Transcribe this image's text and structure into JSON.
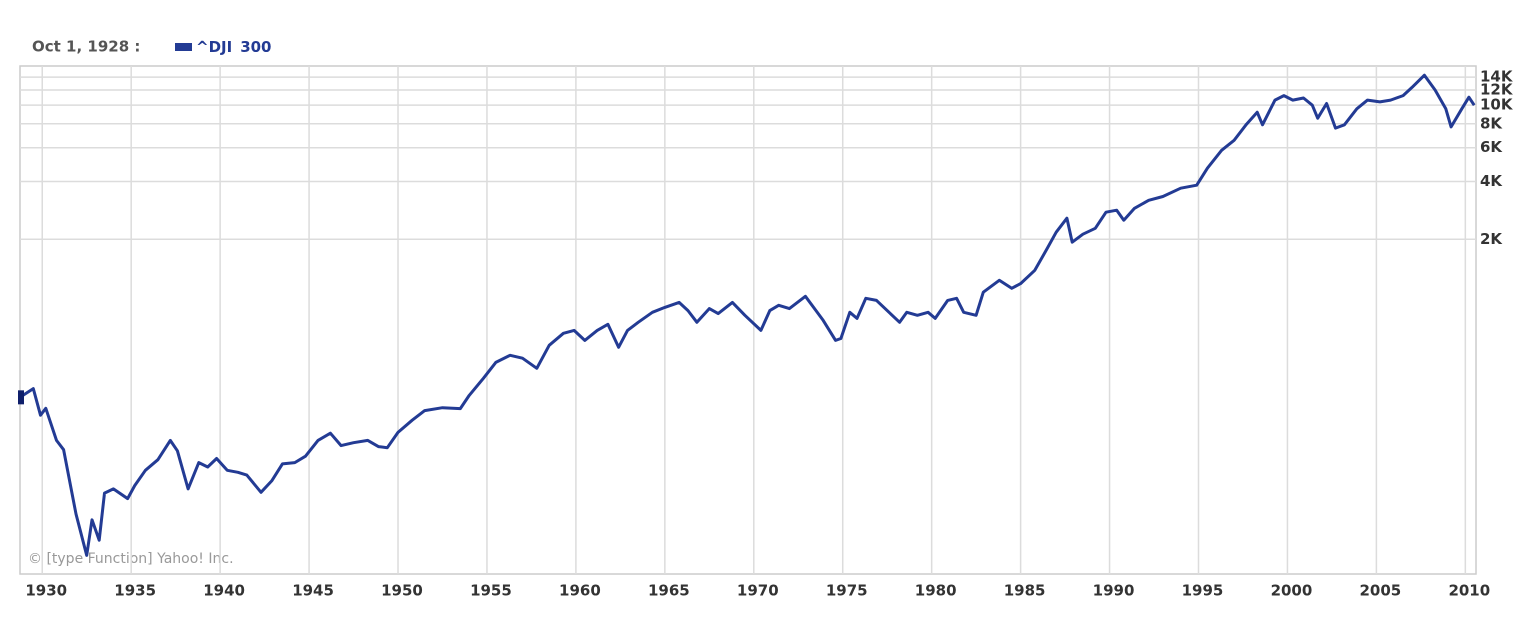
{
  "chart_data": {
    "type": "line",
    "legend": {
      "date": "Oct 1, 1928 :",
      "value": 300
    },
    "credit": "© [type Function] Yahoo! Inc.",
    "log_scale": true,
    "grid": true,
    "xlim": [
      1928.75,
      2010.6
    ],
    "xticks": [
      1930,
      1935,
      1940,
      1945,
      1950,
      1955,
      1960,
      1965,
      1970,
      1975,
      1980,
      1985,
      1990,
      1995,
      2000,
      2005,
      2010
    ],
    "ylim": [
      36,
      16000
    ],
    "yticks": [
      {
        "value": 2000,
        "label": "2K"
      },
      {
        "value": 4000,
        "label": "4K"
      },
      {
        "value": 6000,
        "label": "6K"
      },
      {
        "value": 8000,
        "label": "8K"
      },
      {
        "value": 10000,
        "label": "10K"
      },
      {
        "value": 12000,
        "label": "12K"
      },
      {
        "value": 14000,
        "label": "14K"
      }
    ],
    "x": [
      1928.75,
      1929.5,
      1929.9,
      1930.2,
      1930.8,
      1931.2,
      1931.9,
      1932.5,
      1932.8,
      1933.2,
      1933.5,
      1934.0,
      1934.8,
      1935.2,
      1935.8,
      1936.5,
      1937.2,
      1937.6,
      1938.2,
      1938.8,
      1939.3,
      1939.8,
      1940.4,
      1941.0,
      1941.5,
      1942.3,
      1942.9,
      1943.5,
      1944.2,
      1944.8,
      1945.5,
      1946.2,
      1946.8,
      1947.5,
      1948.3,
      1948.9,
      1949.4,
      1950.0,
      1950.8,
      1951.5,
      1952.5,
      1953.5,
      1954.0,
      1954.8,
      1955.5,
      1956.3,
      1957.0,
      1957.8,
      1958.5,
      1959.3,
      1959.9,
      1960.5,
      1961.2,
      1961.8,
      1962.4,
      1962.9,
      1963.5,
      1964.3,
      1965.0,
      1965.8,
      1966.3,
      1966.8,
      1967.5,
      1968.0,
      1968.8,
      1969.5,
      1970.4,
      1970.9,
      1971.4,
      1972.0,
      1972.9,
      1973.5,
      1973.9,
      1974.6,
      1974.9,
      1975.4,
      1975.8,
      1976.3,
      1976.9,
      1977.5,
      1978.2,
      1978.6,
      1979.2,
      1979.8,
      1980.2,
      1980.9,
      1981.4,
      1981.8,
      1982.5,
      1982.9,
      1983.8,
      1984.5,
      1985.0,
      1985.8,
      1986.5,
      1987.0,
      1987.6,
      1987.9,
      1988.5,
      1989.2,
      1989.8,
      1990.4,
      1990.8,
      1991.4,
      1992.2,
      1993.0,
      1994.0,
      1994.9,
      1995.5,
      1996.3,
      1997.0,
      1997.7,
      1998.3,
      1998.6,
      1999.3,
      1999.8,
      2000.3,
      2000.9,
      2001.4,
      2001.7,
      2002.2,
      2002.7,
      2003.2,
      2003.9,
      2004.5,
      2005.2,
      2005.8,
      2006.5,
      2007.0,
      2007.7,
      2008.3,
      2008.9,
      2009.2,
      2009.8,
      2010.2,
      2010.5
    ],
    "series": [
      {
        "name": "^DJI",
        "color": "#233b94",
        "values": [
          300,
          333,
          242,
          263,
          179,
          160,
          74,
          45,
          69,
          54,
          95,
          100,
          89,
          104,
          125,
          142,
          179,
          158,
          100,
          137,
          130,
          144,
          125,
          122,
          118,
          96,
          110,
          135,
          137,
          148,
          179,
          195,
          168,
          174,
          179,
          166,
          164,
          197,
          228,
          256,
          265,
          262,
          307,
          377,
          456,
          497,
          480,
          425,
          560,
          647,
          670,
          594,
          670,
          721,
          547,
          670,
          738,
          832,
          883,
          937,
          850,
          738,
          870,
          820,
          937,
          803,
          670,
          850,
          905,
          870,
          1009,
          850,
          755,
          594,
          608,
          832,
          774,
          985,
          960,
          850,
          738,
          832,
          803,
          832,
          774,
          960,
          985,
          832,
          803,
          1059,
          1222,
          1110,
          1175,
          1378,
          1795,
          2177,
          2576,
          1930,
          2126,
          2280,
          2767,
          2835,
          2513,
          2900,
          3194,
          3340,
          3690,
          3828,
          4690,
          5820,
          6560,
          7960,
          9190,
          7900,
          10620,
          11220,
          10620,
          10900,
          10000,
          8550,
          10200,
          7590,
          7900,
          9570,
          10620,
          10400,
          10620,
          11220,
          12370,
          14320,
          12000,
          9570,
          7700,
          9570,
          11000,
          10000
        ]
      }
    ]
  }
}
